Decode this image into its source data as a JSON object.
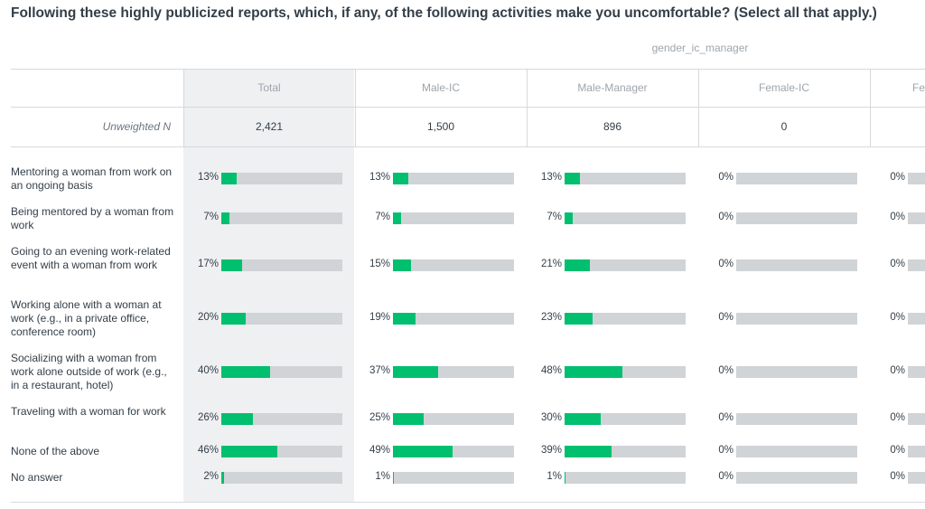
{
  "title": "Following these highly publicized reports, which, if any, of the following activities make you uncomfortable? (Select all that apply.)",
  "group_label": "gender_ic_manager",
  "unweighted_label": "Unweighted N",
  "columns": [
    {
      "label": "Total",
      "n": "2,421"
    },
    {
      "label": "Male-IC",
      "n": "1,500"
    },
    {
      "label": "Male-Manager",
      "n": "896"
    },
    {
      "label": "Female-IC",
      "n": "0"
    },
    {
      "label": "Fe",
      "n": ""
    }
  ],
  "rows": [
    {
      "label": "Mentoring a woman from work on an ongoing basis",
      "pcts": [
        "13%",
        "13%",
        "13%",
        "0%",
        "0%"
      ],
      "values": [
        13,
        13,
        13,
        0,
        0
      ]
    },
    {
      "label": "Being mentored by a woman from work",
      "pcts": [
        "7%",
        "7%",
        "7%",
        "0%",
        "0%"
      ],
      "values": [
        7,
        7,
        7,
        0,
        0
      ]
    },
    {
      "label": "Going to an evening work-related event with a woman from work",
      "pcts": [
        "17%",
        "15%",
        "21%",
        "0%",
        "0%"
      ],
      "values": [
        17,
        15,
        21,
        0,
        0
      ]
    },
    {
      "label": "Working alone with a woman at work (e.g., in a private office, conference room)",
      "pcts": [
        "20%",
        "19%",
        "23%",
        "0%",
        "0%"
      ],
      "values": [
        20,
        19,
        23,
        0,
        0
      ]
    },
    {
      "label": "Socializing with a woman from work alone outside of work (e.g., in a restaurant, hotel)",
      "pcts": [
        "40%",
        "37%",
        "48%",
        "0%",
        "0%"
      ],
      "values": [
        40,
        37,
        48,
        0,
        0
      ]
    },
    {
      "label": "Traveling with a woman for work",
      "pcts": [
        "26%",
        "25%",
        "30%",
        "0%",
        "0%"
      ],
      "values": [
        26,
        25,
        30,
        0,
        0
      ]
    },
    {
      "label": "None of the above",
      "pcts": [
        "46%",
        "49%",
        "39%",
        "0%",
        "0%"
      ],
      "values": [
        46,
        49,
        39,
        0,
        0
      ]
    },
    {
      "label": "No answer",
      "pcts": [
        "2%",
        "1%",
        "1%",
        "0%",
        "0%"
      ],
      "values": [
        2,
        1,
        1,
        0,
        0
      ]
    }
  ],
  "colors": {
    "bar_fill": "#00bf6f",
    "bar_track": "#d0d4d7",
    "total_bg": "#eef0f1"
  }
}
